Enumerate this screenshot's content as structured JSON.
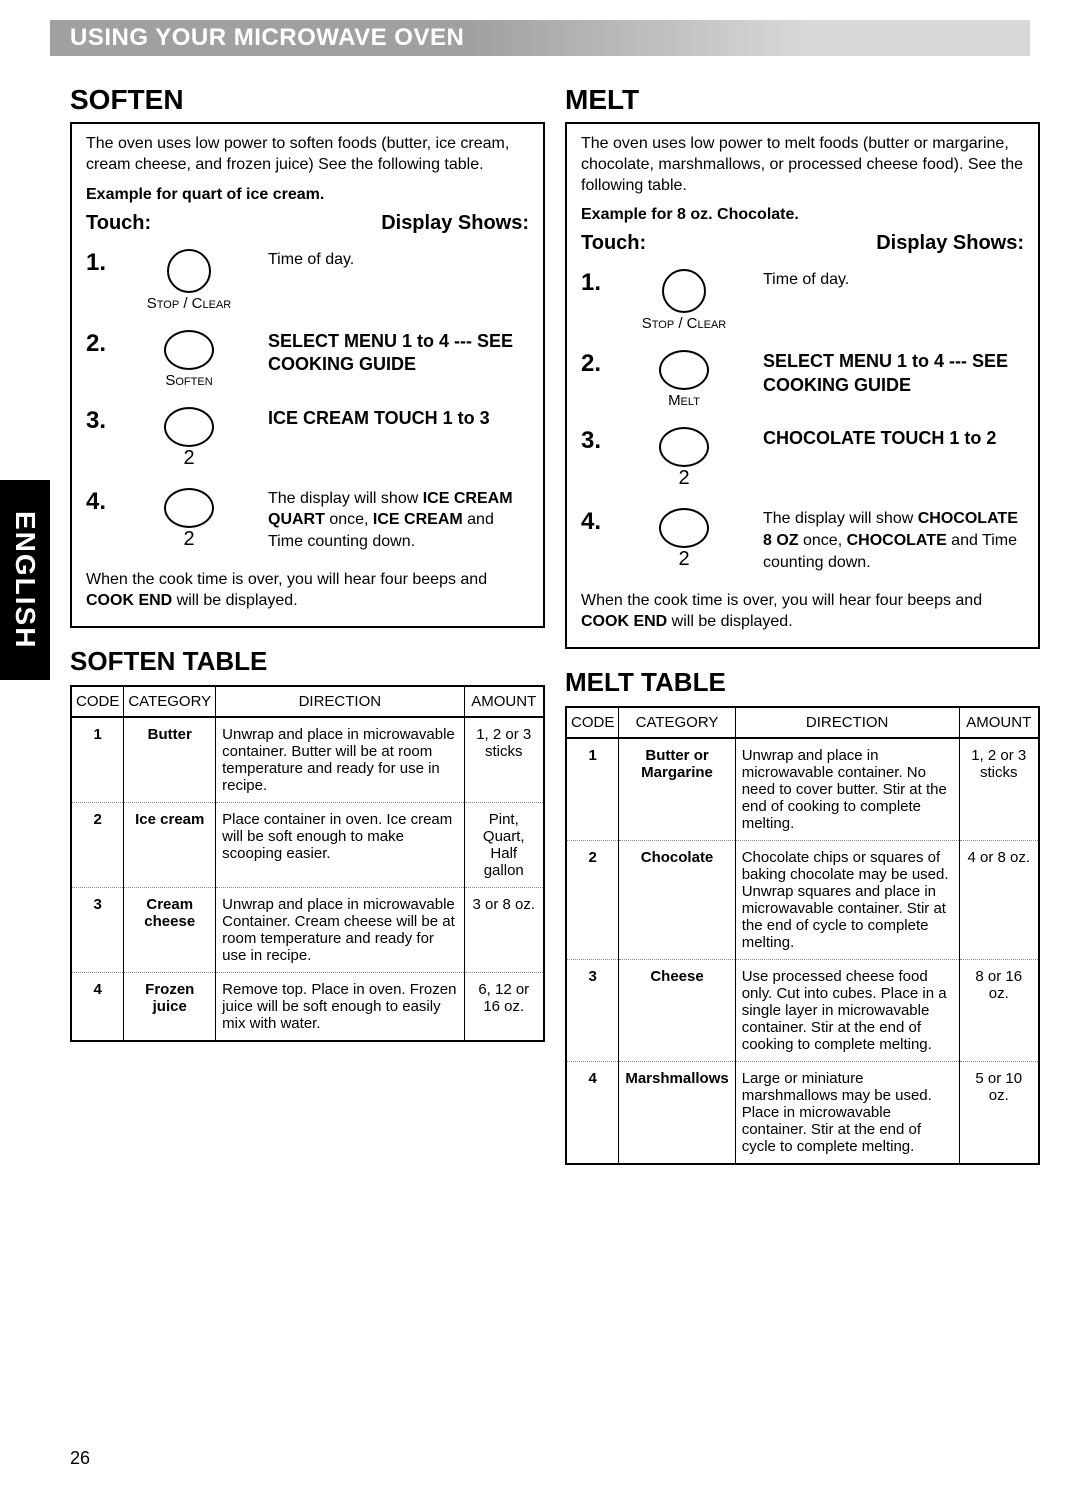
{
  "header": {
    "title": "USING YOUR MICROWAVE OVEN",
    "bg_color": "#a0a0a0",
    "text_color": "#ffffff"
  },
  "side_tab": "ENGLISH",
  "page_number": "26",
  "soften": {
    "title": "SOFTEN",
    "intro": "The oven uses low power to soften foods (butter, ice cream, cream cheese, and frozen juice) See the following table.",
    "example": "Example for quart of ice cream.",
    "touch_header": "Touch:",
    "display_header": "Display Shows:",
    "steps": [
      {
        "num": "1.",
        "btn_shape": "circle",
        "btn_label": "Stop / Clear",
        "disp_plain": "Time of day.",
        "disp_bold": ""
      },
      {
        "num": "2.",
        "btn_shape": "oval",
        "btn_label": "Soften",
        "disp_plain": "",
        "disp_bold": "SELECT MENU 1 to 4 --- SEE COOKING GUIDE"
      },
      {
        "num": "3.",
        "btn_shape": "oval",
        "btn_sub": "2",
        "disp_plain": "",
        "disp_bold": "ICE CREAM TOUCH 1 to 3"
      },
      {
        "num": "4.",
        "btn_shape": "oval",
        "btn_sub": "2",
        "disp_html": "The display will show <b>ICE CREAM QUART</b> once, <b>ICE CREAM</b> and Time counting down."
      }
    ],
    "footer": "When the cook time is over, you will hear four beeps and <b>COOK END</b> will be displayed."
  },
  "soften_table": {
    "title": "SOFTEN TABLE",
    "columns": [
      "CODE",
      "CATEGORY",
      "DIRECTION",
      "AMOUNT"
    ],
    "col_widths": [
      "50px",
      "90px",
      "auto",
      "80px"
    ],
    "rows": [
      {
        "code": "1",
        "category": "Butter",
        "direction": "Unwrap and place in microwavable container. Butter will be at room temperature and ready for use in recipe.",
        "amount": "1, 2 or 3 sticks"
      },
      {
        "code": "2",
        "category": "Ice cream",
        "direction": "Place container in oven. Ice cream will be soft enough to make scooping easier.",
        "amount": "Pint, Quart, Half gallon"
      },
      {
        "code": "3",
        "category": "Cream cheese",
        "direction": "Unwrap and place in microwavable Container. Cream cheese will be at room temperature and ready for use in recipe.",
        "amount": "3 or 8 oz."
      },
      {
        "code": "4",
        "category": "Frozen juice",
        "direction": "Remove top. Place in oven. Frozen juice will be soft enough to easily mix with water.",
        "amount": "6, 12 or 16 oz."
      }
    ]
  },
  "melt": {
    "title": "MELT",
    "intro": "The oven uses low power to melt foods (butter or margarine, chocolate, marshmallows, or processed cheese food). See the following table.",
    "example": "Example for 8 oz. Chocolate.",
    "touch_header": "Touch:",
    "display_header": "Display Shows:",
    "steps": [
      {
        "num": "1.",
        "btn_shape": "circle",
        "btn_label": "Stop / Clear",
        "disp_plain": "Time of day.",
        "disp_bold": ""
      },
      {
        "num": "2.",
        "btn_shape": "oval",
        "btn_label": "Melt",
        "disp_plain": "",
        "disp_bold": "SELECT MENU 1 to 4 --- SEE COOKING GUIDE"
      },
      {
        "num": "3.",
        "btn_shape": "oval",
        "btn_sub": "2",
        "disp_plain": "",
        "disp_bold": "CHOCOLATE TOUCH 1 to 2"
      },
      {
        "num": "4.",
        "btn_shape": "oval",
        "btn_sub": "2",
        "disp_html": "The display will show <b>CHOCOLATE 8 OZ</b> once, <b>CHOCOLATE</b> and Time counting down."
      }
    ],
    "footer": "When the cook time is over, you will hear four beeps and <b>COOK END</b> will be displayed."
  },
  "melt_table": {
    "title": "MELT TABLE",
    "columns": [
      "CODE",
      "CATEGORY",
      "DIRECTION",
      "AMOUNT"
    ],
    "col_widths": [
      "50px",
      "110px",
      "auto",
      "80px"
    ],
    "rows": [
      {
        "code": "1",
        "category": "Butter or Margarine",
        "direction": "Unwrap and place in microwavable container. No need to cover butter. Stir at the end of cooking to complete melting.",
        "amount": "1, 2 or 3 sticks"
      },
      {
        "code": "2",
        "category": "Chocolate",
        "direction": "Chocolate chips or squares of baking chocolate may be used. Unwrap squares and place in microwavable container. Stir at the end of cycle to complete melting.",
        "amount": "4 or 8 oz."
      },
      {
        "code": "3",
        "category": "Cheese",
        "direction": "Use processed cheese food only. Cut into cubes. Place in a single layer in microwavable container. Stir at the end of cooking to complete melting.",
        "amount": "8 or 16 oz."
      },
      {
        "code": "4",
        "category": "Marshmallows",
        "direction": "Large or miniature marshmallows may be used. Place in microwavable container. Stir at the end of cycle to complete melting.",
        "amount": "5 or 10 oz."
      }
    ]
  }
}
